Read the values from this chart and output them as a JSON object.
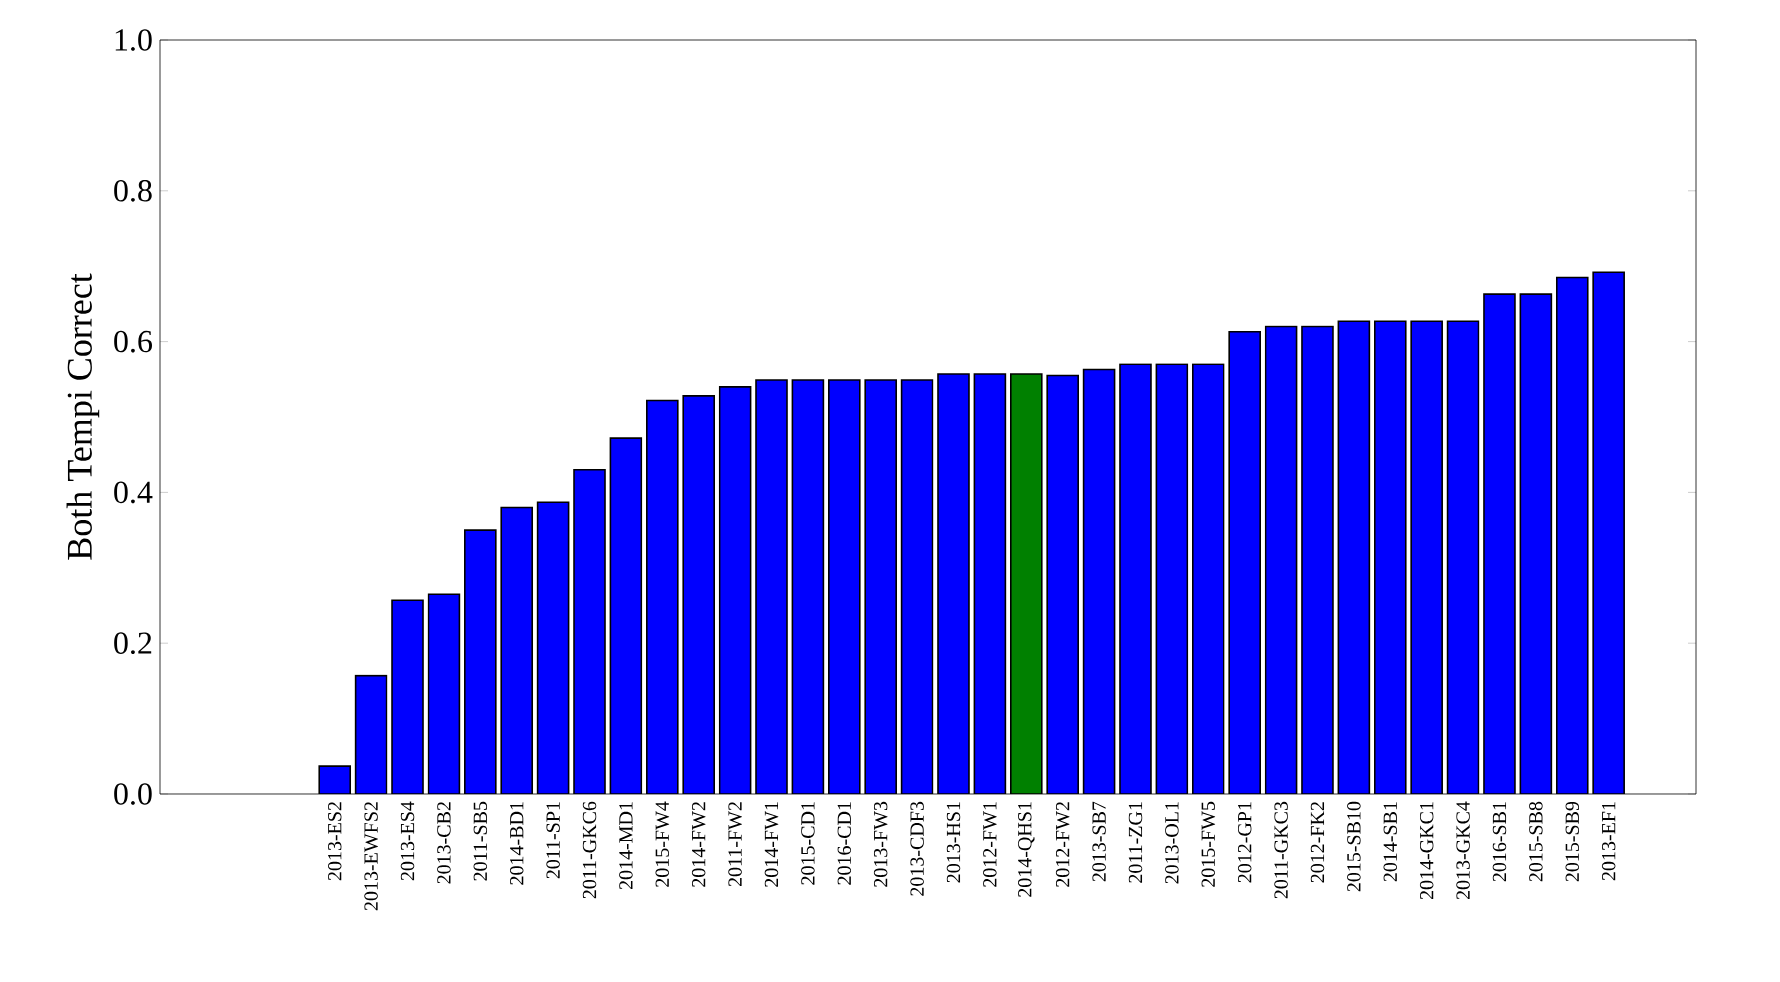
{
  "chart_data": {
    "type": "bar",
    "ylabel": "Both Tempi Correct",
    "categories": [
      "2013-ES2",
      "2013-EWFS2",
      "2013-ES4",
      "2013-CB2",
      "2011-SB5",
      "2014-BD1",
      "2011-SP1",
      "2011-GKC6",
      "2014-MD1",
      "2015-FW4",
      "2014-FW2",
      "2011-FW2",
      "2014-FW1",
      "2015-CD1",
      "2016-CD1",
      "2013-FW3",
      "2013-CDF3",
      "2013-HS1",
      "2012-FW1",
      "2014-QHS1",
      "2012-FW2",
      "2013-SB7",
      "2011-ZG1",
      "2013-OL1",
      "2015-FW5",
      "2012-GP1",
      "2011-GKC3",
      "2012-FK2",
      "2015-SB10",
      "2014-SB1",
      "2014-GKC1",
      "2013-GKC4",
      "2016-SB1",
      "2015-SB8",
      "2015-SB9",
      "2013-EF1"
    ],
    "values": [
      0.037,
      0.157,
      0.257,
      0.265,
      0.35,
      0.38,
      0.387,
      0.43,
      0.472,
      0.522,
      0.528,
      0.54,
      0.549,
      0.549,
      0.549,
      0.549,
      0.549,
      0.557,
      0.557,
      0.557,
      0.555,
      0.563,
      0.57,
      0.57,
      0.57,
      0.613,
      0.62,
      0.62,
      0.627,
      0.627,
      0.627,
      0.627,
      0.663,
      0.663,
      0.685,
      0.692
    ],
    "colors": [
      "#0000ff",
      "#0000ff",
      "#0000ff",
      "#0000ff",
      "#0000ff",
      "#0000ff",
      "#0000ff",
      "#0000ff",
      "#0000ff",
      "#0000ff",
      "#0000ff",
      "#0000ff",
      "#0000ff",
      "#0000ff",
      "#0000ff",
      "#0000ff",
      "#0000ff",
      "#0000ff",
      "#0000ff",
      "#008000",
      "#0000ff",
      "#0000ff",
      "#0000ff",
      "#0000ff",
      "#0000ff",
      "#0000ff",
      "#0000ff",
      "#0000ff",
      "#0000ff",
      "#0000ff",
      "#0000ff",
      "#0000ff",
      "#0000ff",
      "#0000ff",
      "#0000ff",
      "#0000ff"
    ],
    "ylim": [
      0,
      1.0
    ],
    "yticks": [
      {
        "value": 0,
        "label": "0.0"
      },
      {
        "value": 0.2,
        "label": "0.2"
      },
      {
        "value": 0.4,
        "label": "0.4"
      },
      {
        "value": 0.6,
        "label": "0.6"
      },
      {
        "value": 0.8,
        "label": "0.8"
      },
      {
        "value": 1.0,
        "label": "1.0"
      }
    ],
    "grid": false
  }
}
